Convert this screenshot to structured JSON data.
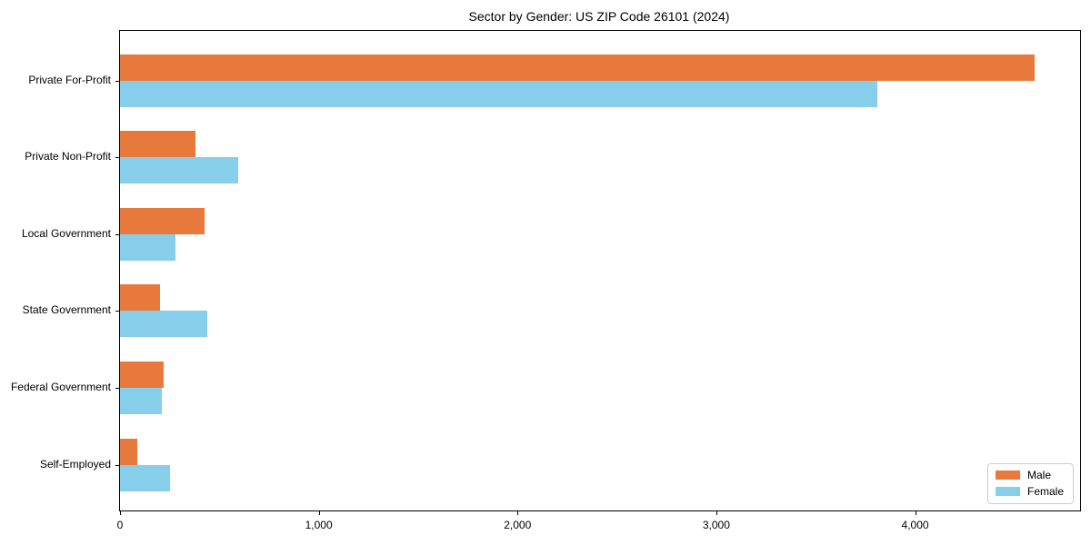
{
  "chart_data": {
    "type": "bar",
    "orientation": "horizontal",
    "title": "Sector by Gender: US ZIP Code 26101 (2024)",
    "categories": [
      "Private For-Profit",
      "Private Non-Profit",
      "Local Government",
      "State Government",
      "Federal Government",
      "Self-Employed"
    ],
    "series": [
      {
        "name": "Male",
        "color": "#E8793C",
        "values": [
          4600,
          380,
          425,
          200,
          220,
          85
        ]
      },
      {
        "name": "Female",
        "color": "#87CEEB",
        "values": [
          3810,
          595,
          280,
          440,
          210,
          250
        ]
      }
    ],
    "xlabel": "",
    "ylabel": "",
    "xlim": [
      0,
      4830
    ],
    "xticks": [
      0,
      1000,
      2000,
      3000,
      4000
    ],
    "xtick_labels": [
      "0",
      "1,000",
      "2,000",
      "3,000",
      "4,000"
    ],
    "grid": false,
    "legend": {
      "position": "lower right",
      "items": [
        "Male",
        "Female"
      ]
    }
  }
}
